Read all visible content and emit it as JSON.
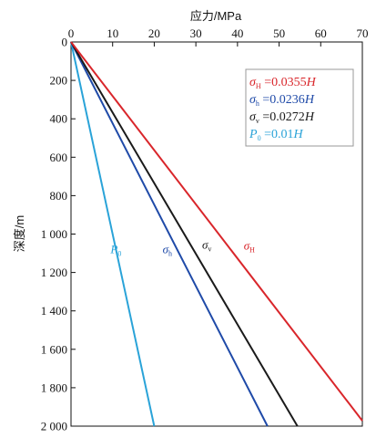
{
  "chart_data": {
    "type": "line",
    "title": "",
    "xlabel": "应力/MPa",
    "ylabel": "深度/m",
    "x_axis_position": "top",
    "y_axis_inverted": true,
    "xlim": [
      0,
      70
    ],
    "ylim": [
      0,
      2000
    ],
    "x_ticks": [
      0,
      10,
      20,
      30,
      40,
      50,
      60,
      70
    ],
    "x_tick_labels": [
      "0",
      "10",
      "20",
      "30",
      "40",
      "50",
      "60",
      "70"
    ],
    "y_ticks": [
      0,
      200,
      400,
      600,
      800,
      1000,
      1200,
      1400,
      1600,
      1800,
      2000
    ],
    "y_tick_labels": [
      "0",
      "200",
      "400",
      "600",
      "800",
      "1 000",
      "1 200",
      "1 400",
      "1 600",
      "1 800",
      "2 000"
    ],
    "grid": false,
    "legend": {
      "placement": "top-right",
      "entries": [
        {
          "symbol": "σ",
          "sub": "H",
          "eq": "=0.0355",
          "var": "H",
          "color": "#d9262b"
        },
        {
          "symbol": "σ",
          "sub": "h",
          "eq": "=0.0236",
          "var": "H",
          "color": "#1f4aa8"
        },
        {
          "symbol": "σ",
          "sub": "v",
          "eq": "=0.0272",
          "var": "H",
          "color": "#1a1a1a"
        },
        {
          "symbol": "P",
          "sub": "0",
          "eq": "=0.01",
          "var": "H",
          "color": "#2aa3d8"
        }
      ]
    },
    "series": [
      {
        "symbol": "P",
        "sub": "0",
        "coefficient": 0.01,
        "color": "#2aa3d8",
        "points": [
          [
            0,
            0
          ],
          [
            20,
            2000
          ]
        ],
        "label_at": [
          9.5,
          1100
        ]
      },
      {
        "symbol": "σ",
        "sub": "h",
        "coefficient": 0.0236,
        "color": "#1f4aa8",
        "points": [
          [
            0,
            0
          ],
          [
            47.2,
            2000
          ]
        ],
        "label_at": [
          22,
          1100
        ]
      },
      {
        "symbol": "σ",
        "sub": "v",
        "coefficient": 0.0272,
        "color": "#1a1a1a",
        "points": [
          [
            0,
            0
          ],
          [
            54.4,
            2000
          ]
        ],
        "label_at": [
          31.5,
          1075
        ]
      },
      {
        "symbol": "σ",
        "sub": "H",
        "coefficient": 0.0355,
        "color": "#d9262b",
        "points": [
          [
            0,
            0
          ],
          [
            70,
            1972
          ]
        ],
        "label_at": [
          41.5,
          1080
        ]
      }
    ]
  }
}
